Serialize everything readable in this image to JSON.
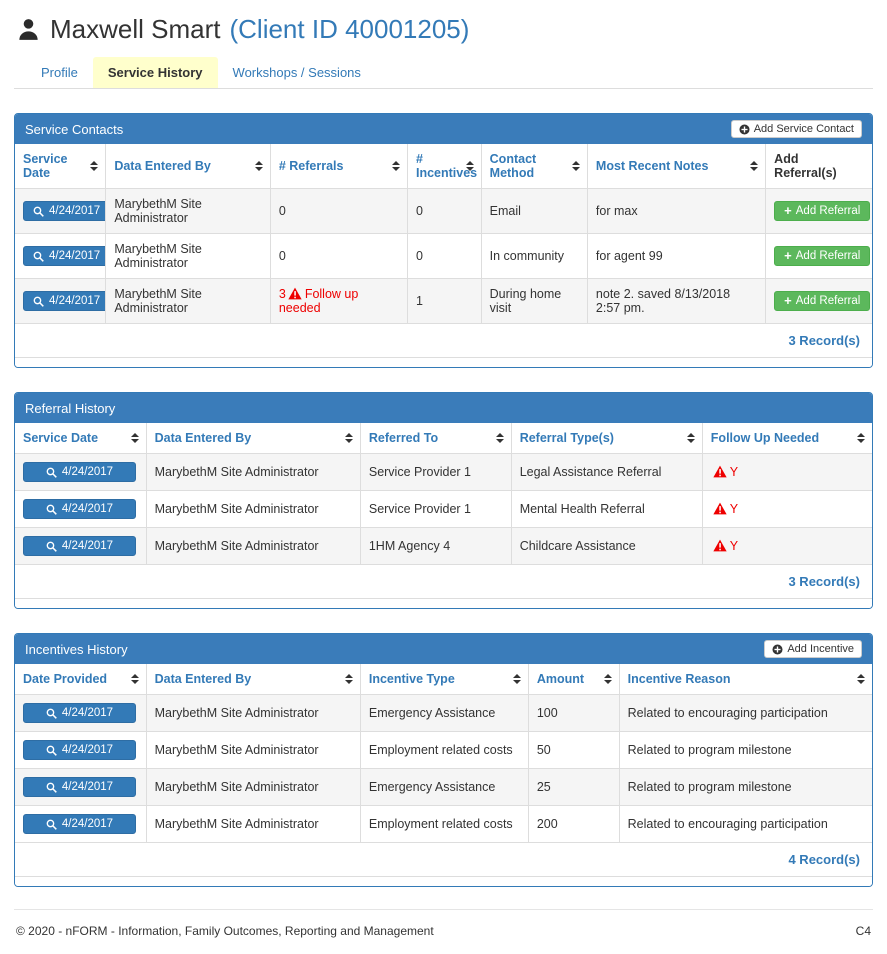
{
  "header": {
    "title": "Maxwell Smart",
    "client_id": "(Client ID 40001205)"
  },
  "tabs": [
    {
      "label": "Profile",
      "active": false
    },
    {
      "label": "Service History",
      "active": true
    },
    {
      "label": "Workshops / Sessions",
      "active": false
    }
  ],
  "service_contacts": {
    "title": "Service Contacts",
    "add_button_label": "Add Service Contact",
    "columns": [
      {
        "label": "Service Date",
        "sortable": true
      },
      {
        "label": "Data Entered By",
        "sortable": true
      },
      {
        "label": "# Referrals",
        "sortable": true
      },
      {
        "label": "# Incentives",
        "sortable": true
      },
      {
        "label": "Contact Method",
        "sortable": true
      },
      {
        "label": "Most Recent Notes",
        "sortable": true
      },
      {
        "label": "Add Referral(s)",
        "sortable": false
      }
    ],
    "rows": [
      [
        {
          "t": "date",
          "v": "4/24/2017"
        },
        {
          "t": "txt",
          "v": "MarybethM Site Administrator"
        },
        {
          "t": "txt",
          "v": "0"
        },
        {
          "t": "txt",
          "v": "0"
        },
        {
          "t": "txt",
          "v": "Email"
        },
        {
          "t": "txt",
          "v": "for max"
        },
        {
          "t": "green",
          "v": "Add Referral"
        }
      ],
      [
        {
          "t": "date",
          "v": "4/24/2017"
        },
        {
          "t": "txt",
          "v": "MarybethM Site Administrator"
        },
        {
          "t": "txt",
          "v": "0"
        },
        {
          "t": "txt",
          "v": "0"
        },
        {
          "t": "txt",
          "v": "In community"
        },
        {
          "t": "txt",
          "v": "for agent 99"
        },
        {
          "t": "green",
          "v": "Add Referral"
        }
      ],
      [
        {
          "t": "date",
          "v": "4/24/2017"
        },
        {
          "t": "txt",
          "v": "MarybethM Site Administrator"
        },
        {
          "t": "warn",
          "pre": "3",
          "v": "Follow up needed"
        },
        {
          "t": "txt",
          "v": "1"
        },
        {
          "t": "txt",
          "v": "During home visit"
        },
        {
          "t": "txt",
          "v": "note 2. saved 8/13/2018 2:57 pm."
        },
        {
          "t": "green",
          "v": "Add Referral"
        }
      ]
    ],
    "record_count": "3 Record(s)"
  },
  "referral_history": {
    "title": "Referral History",
    "columns": [
      {
        "label": "Service Date",
        "sortable": true
      },
      {
        "label": "Data Entered By",
        "sortable": true
      },
      {
        "label": "Referred To",
        "sortable": true
      },
      {
        "label": "Referral Type(s)",
        "sortable": true
      },
      {
        "label": "Follow Up Needed",
        "sortable": true
      }
    ],
    "rows": [
      [
        {
          "t": "date",
          "v": "4/24/2017"
        },
        {
          "t": "txt",
          "v": "MarybethM Site Administrator"
        },
        {
          "t": "txt",
          "v": "Service Provider 1"
        },
        {
          "t": "txt",
          "v": "Legal Assistance Referral"
        },
        {
          "t": "warn",
          "pre": "",
          "v": "Y"
        }
      ],
      [
        {
          "t": "date",
          "v": "4/24/2017"
        },
        {
          "t": "txt",
          "v": "MarybethM Site Administrator"
        },
        {
          "t": "txt",
          "v": "Service Provider 1"
        },
        {
          "t": "txt",
          "v": "Mental Health Referral"
        },
        {
          "t": "warn",
          "pre": "",
          "v": "Y"
        }
      ],
      [
        {
          "t": "date",
          "v": "4/24/2017"
        },
        {
          "t": "txt",
          "v": "MarybethM Site Administrator"
        },
        {
          "t": "txt",
          "v": "1HM Agency 4"
        },
        {
          "t": "txt",
          "v": "Childcare Assistance"
        },
        {
          "t": "warn",
          "pre": "",
          "v": "Y"
        }
      ]
    ],
    "record_count": "3 Record(s)"
  },
  "incentives_history": {
    "title": "Incentives History",
    "add_button_label": "Add Incentive",
    "columns": [
      {
        "label": "Date Provided",
        "sortable": true
      },
      {
        "label": "Data Entered By",
        "sortable": true
      },
      {
        "label": "Incentive Type",
        "sortable": true
      },
      {
        "label": "Amount",
        "sortable": true
      },
      {
        "label": "Incentive Reason",
        "sortable": true
      }
    ],
    "rows": [
      [
        {
          "t": "date",
          "v": "4/24/2017"
        },
        {
          "t": "txt",
          "v": "MarybethM Site Administrator"
        },
        {
          "t": "txt",
          "v": "Emergency Assistance"
        },
        {
          "t": "txt",
          "v": "100"
        },
        {
          "t": "txt",
          "v": "Related to encouraging participation"
        }
      ],
      [
        {
          "t": "date",
          "v": "4/24/2017"
        },
        {
          "t": "txt",
          "v": "MarybethM Site Administrator"
        },
        {
          "t": "txt",
          "v": "Employment related costs"
        },
        {
          "t": "txt",
          "v": "50"
        },
        {
          "t": "txt",
          "v": "Related to program milestone"
        }
      ],
      [
        {
          "t": "date",
          "v": "4/24/2017"
        },
        {
          "t": "txt",
          "v": "MarybethM Site Administrator"
        },
        {
          "t": "txt",
          "v": "Emergency Assistance"
        },
        {
          "t": "txt",
          "v": "25"
        },
        {
          "t": "txt",
          "v": "Related to program milestone"
        }
      ],
      [
        {
          "t": "date",
          "v": "4/24/2017"
        },
        {
          "t": "txt",
          "v": "MarybethM Site Administrator"
        },
        {
          "t": "txt",
          "v": "Employment related costs"
        },
        {
          "t": "txt",
          "v": "200"
        },
        {
          "t": "txt",
          "v": "Related to encouraging participation"
        }
      ]
    ],
    "record_count": "4 Record(s)"
  },
  "footer": {
    "copyright": "© 2020 - nFORM - Information, Family Outcomes, Reporting and Management",
    "code": "C4"
  },
  "colors": {
    "accent": "#337ab7",
    "panel_header_bg": "#3a7cba",
    "success": "#5cb85c",
    "danger": "#ee0000",
    "active_tab_bg": "#ffffcc"
  }
}
